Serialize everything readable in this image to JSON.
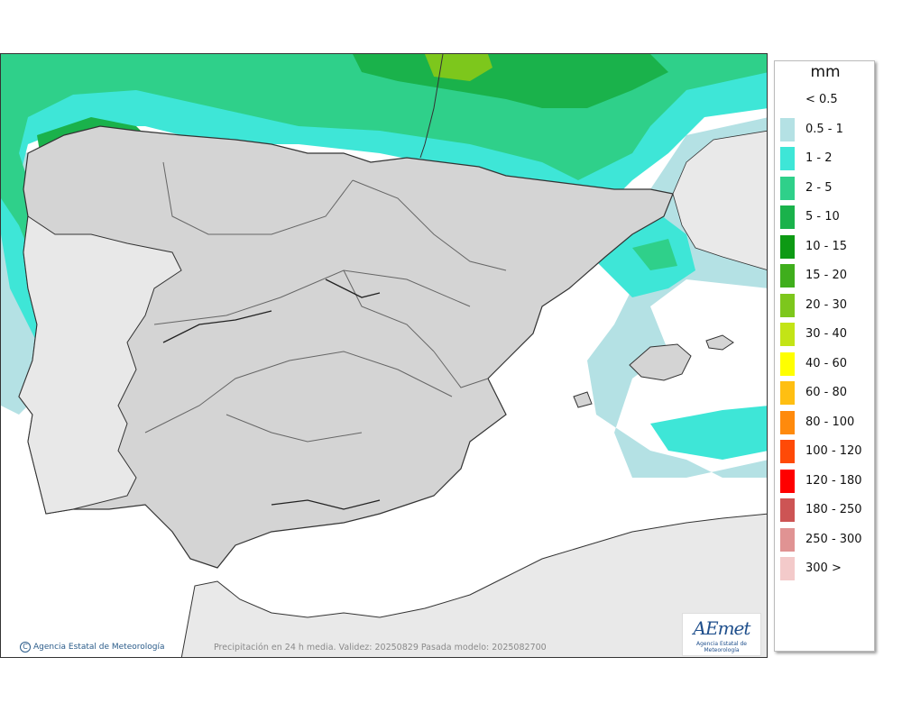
{
  "legend": {
    "title": "mm",
    "items": [
      {
        "label": "< 0.5",
        "color": "#ffffff"
      },
      {
        "label": "0.5 - 1",
        "color": "#b4e1e4"
      },
      {
        "label": "1 - 2",
        "color": "#3ee6d7"
      },
      {
        "label": "2 - 5",
        "color": "#2fd08a"
      },
      {
        "label": "5 - 10",
        "color": "#1ab24b"
      },
      {
        "label": "10 - 15",
        "color": "#0d9a14"
      },
      {
        "label": "15 - 20",
        "color": "#3fae1c"
      },
      {
        "label": "20 - 30",
        "color": "#7dc71c"
      },
      {
        "label": "30 - 40",
        "color": "#c3e416"
      },
      {
        "label": "40 - 60",
        "color": "#ffff00"
      },
      {
        "label": "60 - 80",
        "color": "#ffbf12"
      },
      {
        "label": "80 - 100",
        "color": "#ff8a0c"
      },
      {
        "label": "100 - 120",
        "color": "#ff4a07"
      },
      {
        "label": "120 - 180",
        "color": "#ff0000"
      },
      {
        "label": "180 - 250",
        "color": "#cd5454"
      },
      {
        "label": "250 - 300",
        "color": "#e09393"
      },
      {
        "label": "300 >",
        "color": "#f3caca"
      }
    ]
  },
  "footer": {
    "credit": "Agencia Estatal de Meteorología",
    "caption": "Precipitación en 24 h media. Validez: 20250829 Pasada modelo: 2025082700"
  },
  "logo": {
    "word": "AEmet",
    "sub": "Agencia Estatal de Meteorología"
  }
}
